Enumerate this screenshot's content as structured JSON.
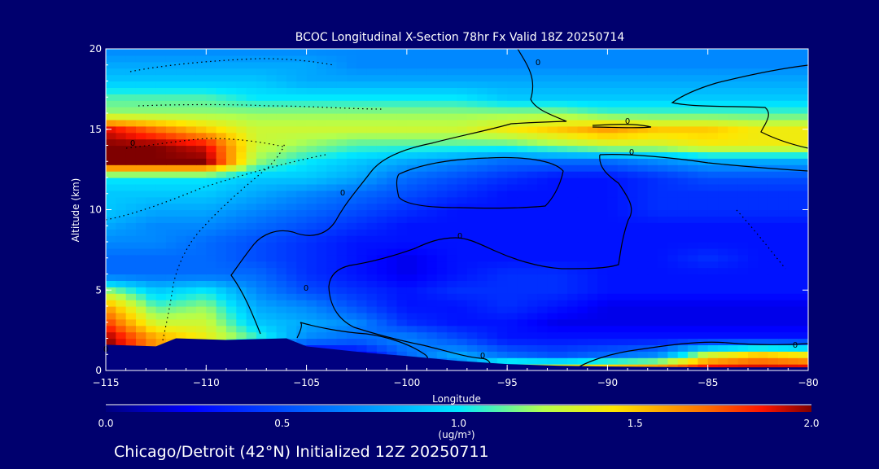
{
  "chart_data": {
    "type": "heatmap",
    "title": "BCOC Longitudinal X-Section 78hr  Fx Valid 18Z 20250714",
    "xlabel": "Longitude",
    "ylabel": "Altitude (km)",
    "xlim": [
      -115,
      -80
    ],
    "ylim": [
      0,
      20
    ],
    "x_ticks": [
      "-115",
      "-110",
      "-105",
      "-100",
      "-95",
      "-90",
      "-85",
      "-80"
    ],
    "y_ticks": [
      "0",
      "5",
      "10",
      "15",
      "20"
    ],
    "colorbar": {
      "range": [
        0.0,
        2.0
      ],
      "ticks": [
        "0.0",
        "0.5",
        "1.0",
        "1.5",
        "2.0"
      ],
      "label": "(ug/m³)"
    },
    "contour_labels": [
      "0",
      "0",
      "0",
      "0",
      "0",
      "0",
      "0",
      "0",
      "0",
      "0"
    ],
    "grid_lon": [
      -115,
      -112.5,
      -110,
      -107.5,
      -105,
      -102.5,
      -100,
      -97.5,
      -95,
      -92.5,
      -90,
      -87.5,
      -85,
      -82.5,
      -80
    ],
    "grid_alt": [
      0,
      1,
      2,
      3,
      4,
      5,
      6,
      7,
      8,
      9,
      10,
      11,
      12,
      13,
      14,
      15,
      16,
      17,
      18,
      19,
      20
    ],
    "values_by_altitude": [
      [
        0.8,
        0.8,
        0.5,
        0.1,
        0.1,
        0.1,
        0.2,
        0.6,
        1.6,
        1.6,
        1.7,
        1.8,
        2.0,
        2.0,
        2.0
      ],
      [
        2.0,
        1.6,
        1.4,
        0.1,
        0.1,
        0.2,
        0.6,
        0.8,
        0.6,
        0.5,
        0.6,
        0.7,
        1.3,
        1.5,
        1.4
      ],
      [
        2.0,
        1.6,
        1.4,
        1.1,
        0.7,
        0.6,
        0.7,
        0.5,
        0.3,
        0.3,
        0.3,
        0.3,
        0.3,
        0.3,
        0.3
      ],
      [
        1.8,
        1.3,
        1.3,
        0.9,
        0.8,
        0.7,
        0.4,
        0.3,
        0.3,
        0.2,
        0.2,
        0.2,
        0.2,
        0.2,
        0.2
      ],
      [
        1.6,
        1.1,
        1.2,
        0.8,
        0.7,
        0.5,
        0.3,
        0.3,
        0.4,
        0.3,
        0.2,
        0.2,
        0.2,
        0.2,
        0.2
      ],
      [
        1.2,
        0.9,
        1.0,
        0.7,
        0.5,
        0.4,
        0.3,
        0.4,
        0.4,
        0.4,
        0.3,
        0.3,
        0.3,
        0.3,
        0.3
      ],
      [
        0.6,
        0.6,
        0.6,
        0.6,
        0.4,
        0.3,
        0.2,
        0.3,
        0.4,
        0.4,
        0.3,
        0.3,
        0.3,
        0.3,
        0.3
      ],
      [
        0.6,
        0.6,
        0.6,
        0.5,
        0.4,
        0.3,
        0.2,
        0.3,
        0.3,
        0.3,
        0.3,
        0.3,
        0.4,
        0.3,
        0.3
      ],
      [
        0.7,
        0.7,
        0.6,
        0.5,
        0.4,
        0.3,
        0.3,
        0.3,
        0.3,
        0.3,
        0.3,
        0.3,
        0.3,
        0.3,
        0.3
      ],
      [
        0.8,
        0.7,
        0.7,
        0.6,
        0.5,
        0.4,
        0.3,
        0.3,
        0.3,
        0.3,
        0.3,
        0.3,
        0.3,
        0.3,
        0.3
      ],
      [
        0.9,
        0.8,
        0.8,
        0.7,
        0.6,
        0.5,
        0.4,
        0.3,
        0.3,
        0.3,
        0.3,
        0.4,
        0.4,
        0.4,
        0.4
      ],
      [
        0.9,
        0.9,
        0.9,
        0.8,
        0.7,
        0.6,
        0.5,
        0.4,
        0.3,
        0.3,
        0.3,
        0.4,
        0.4,
        0.4,
        0.4
      ],
      [
        1.0,
        1.0,
        1.0,
        0.9,
        0.9,
        0.8,
        0.6,
        0.5,
        0.4,
        0.3,
        0.3,
        0.4,
        0.5,
        0.5,
        0.5
      ],
      [
        2.0,
        2.0,
        2.0,
        1.2,
        1.0,
        0.9,
        0.8,
        0.7,
        0.6,
        0.6,
        0.6,
        0.7,
        0.8,
        0.8,
        0.8
      ],
      [
        2.0,
        2.0,
        1.9,
        1.3,
        1.2,
        1.1,
        1.1,
        1.1,
        1.1,
        1.2,
        1.3,
        1.3,
        1.4,
        1.4,
        1.4
      ],
      [
        1.9,
        1.7,
        1.5,
        1.3,
        1.3,
        1.3,
        1.3,
        1.3,
        1.4,
        1.5,
        1.6,
        1.5,
        1.5,
        1.4,
        1.4
      ],
      [
        1.2,
        1.2,
        1.2,
        1.2,
        1.2,
        1.2,
        1.2,
        1.2,
        1.2,
        1.2,
        1.1,
        1.1,
        1.1,
        1.1,
        1.1
      ],
      [
        1.1,
        1.1,
        1.1,
        1.0,
        1.0,
        1.0,
        1.0,
        1.0,
        0.9,
        0.9,
        0.9,
        0.9,
        0.9,
        0.9,
        0.9
      ],
      [
        0.9,
        0.9,
        0.9,
        0.9,
        0.8,
        0.8,
        0.8,
        0.8,
        0.8,
        0.8,
        0.8,
        0.8,
        0.8,
        0.8,
        0.8
      ],
      [
        0.8,
        0.8,
        0.8,
        0.8,
        0.8,
        0.7,
        0.7,
        0.7,
        0.7,
        0.7,
        0.7,
        0.7,
        0.7,
        0.7,
        0.7
      ],
      [
        0.7,
        0.7,
        0.7,
        0.7,
        0.7,
        0.7,
        0.7,
        0.7,
        0.7,
        0.7,
        0.7,
        0.7,
        0.7,
        0.7,
        0.7
      ]
    ],
    "terrain_km": [
      [
        -115,
        1.6
      ],
      [
        -112.5,
        1.5
      ],
      [
        -111.5,
        2.0
      ],
      [
        -109,
        1.9
      ],
      [
        -106,
        2.0
      ],
      [
        -105,
        1.5
      ],
      [
        -102,
        1.1
      ],
      [
        -100,
        0.9
      ],
      [
        -97.5,
        0.6
      ],
      [
        -95,
        0.4
      ],
      [
        -92.5,
        0.3
      ],
      [
        -90,
        0.25
      ],
      [
        -85,
        0.2
      ],
      [
        -80,
        0.2
      ]
    ],
    "grid": false
  },
  "footer": {
    "text": "Chicago/Detroit (42°N) Initialized 12Z 20250711"
  }
}
